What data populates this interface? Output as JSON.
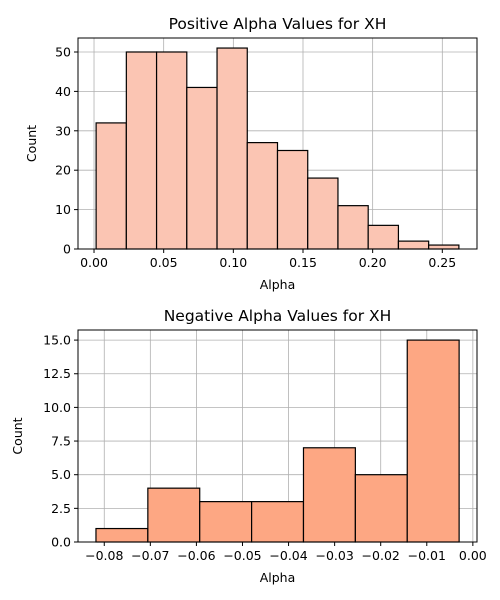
{
  "chart_data": [
    {
      "type": "bar",
      "title": "Positive Alpha Values for XH",
      "xlabel": "Alpha",
      "ylabel": "Count",
      "bin_edges": [
        0.0015,
        0.0232,
        0.0449,
        0.0666,
        0.0883,
        0.11,
        0.1317,
        0.1534,
        0.1751,
        0.1968,
        0.2185,
        0.2402,
        0.2619
      ],
      "values": [
        32,
        50,
        50,
        41,
        51,
        27,
        25,
        18,
        11,
        6,
        2,
        1
      ],
      "xlim": [
        -0.0115,
        0.2749
      ],
      "ylim": [
        0,
        53.55
      ],
      "xticks": [
        0.0,
        0.05,
        0.1,
        0.15,
        0.2,
        0.25
      ],
      "xtick_labels": [
        "0.00",
        "0.05",
        "0.10",
        "0.15",
        "0.20",
        "0.25"
      ],
      "yticks": [
        0,
        10,
        20,
        30,
        40,
        50
      ],
      "ytick_labels": [
        "0",
        "10",
        "20",
        "30",
        "40",
        "50"
      ],
      "grid": true,
      "bar_color": "#fbc5b3",
      "edge_color": "#000000"
    },
    {
      "type": "bar",
      "title": "Negative Alpha Values for XH",
      "xlabel": "Alpha",
      "ylabel": "Count",
      "bin_edges": [
        -0.0818,
        -0.07054,
        -0.05928,
        -0.04802,
        -0.03676,
        -0.0255,
        -0.01424,
        -0.00298
      ],
      "values": [
        1,
        4,
        3,
        3,
        7,
        5,
        15
      ],
      "xlim": [
        -0.0857,
        0.0009
      ],
      "ylim": [
        0,
        15.75
      ],
      "xticks": [
        -0.08,
        -0.07,
        -0.06,
        -0.05,
        -0.04,
        -0.03,
        -0.02,
        -0.01,
        0.0
      ],
      "xtick_labels": [
        "−0.08",
        "−0.07",
        "−0.06",
        "−0.05",
        "−0.04",
        "−0.03",
        "−0.02",
        "−0.01",
        "0.00"
      ],
      "yticks": [
        0,
        2.5,
        5,
        7.5,
        10,
        12.5,
        15
      ],
      "ytick_labels": [
        "0.0",
        "2.5",
        "5.0",
        "7.5",
        "10.0",
        "12.5",
        "15.0"
      ],
      "grid": true,
      "bar_color": "#fda783",
      "edge_color": "#000000"
    }
  ]
}
